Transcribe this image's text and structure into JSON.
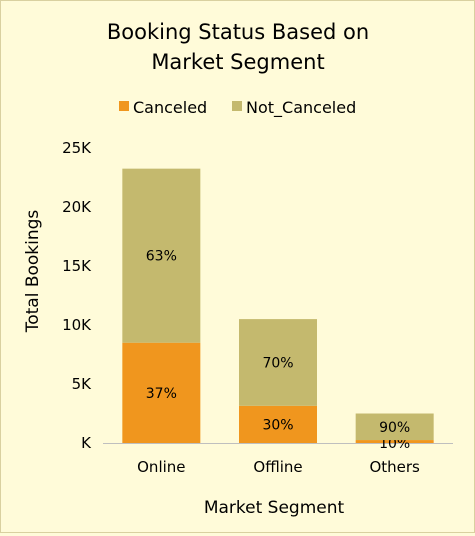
{
  "chart_data": {
    "type": "bar",
    "stacked": true,
    "title_lines": [
      "Booking Status Based on",
      "Market Segment"
    ],
    "xlabel": "Market Segment",
    "ylabel": "Total Bookings",
    "categories": [
      "Online",
      "Offline",
      "Others"
    ],
    "ylim": [
      0,
      25000
    ],
    "yticks": [
      0,
      5000,
      10000,
      15000,
      20000,
      25000
    ],
    "ytick_labels": [
      "K",
      "5K",
      "10K",
      "15K",
      "20K",
      "25K"
    ],
    "grid": false,
    "legend_position": "top",
    "series": [
      {
        "name": "Canceled",
        "color": "#f0961e",
        "values": [
          8500,
          3150,
          250
        ],
        "labels": [
          "37%",
          "30%",
          "10%"
        ]
      },
      {
        "name": "Not_Canceled",
        "color": "#c4b96e",
        "values": [
          14750,
          7350,
          2250
        ],
        "labels": [
          "63%",
          "70%",
          "90%"
        ]
      }
    ]
  }
}
